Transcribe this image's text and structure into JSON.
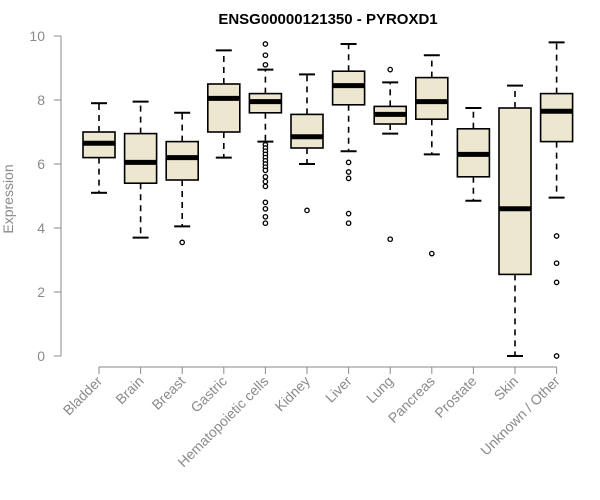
{
  "chart_data": {
    "type": "boxplot",
    "title": "ENSG00000121350 - PYROXD1",
    "xlabel": "",
    "ylabel": "Expression",
    "ylim": [
      0,
      10
    ],
    "yticks": [
      0,
      2,
      4,
      6,
      8,
      10
    ],
    "grid": false,
    "colors": {
      "box_fill": "#ede7d0",
      "stroke": "#000000",
      "axis": "#8a8a8a"
    },
    "categories": [
      "Bladder",
      "Brain",
      "Breast",
      "Gastric",
      "Hematopoietic cells",
      "Kidney",
      "Liver",
      "Lung",
      "Pancreas",
      "Prostate",
      "Skin",
      "Unknown / Other"
    ],
    "boxes": [
      {
        "min": 5.1,
        "q1": 6.2,
        "median": 6.65,
        "q3": 7.0,
        "max": 7.9,
        "outliers": []
      },
      {
        "min": 3.7,
        "q1": 5.4,
        "median": 6.05,
        "q3": 6.95,
        "max": 7.95,
        "outliers": []
      },
      {
        "min": 4.05,
        "q1": 5.5,
        "median": 6.2,
        "q3": 6.7,
        "max": 7.6,
        "outliers": [
          3.55
        ]
      },
      {
        "min": 6.2,
        "q1": 7.0,
        "median": 8.05,
        "q3": 8.5,
        "max": 9.55,
        "outliers": []
      },
      {
        "min": 6.7,
        "q1": 7.6,
        "median": 7.95,
        "q3": 8.2,
        "max": 8.95,
        "outliers": [
          9.75,
          9.4,
          9.1,
          6.6,
          6.5,
          6.4,
          6.3,
          6.2,
          6.1,
          6.0,
          5.9,
          5.8,
          5.6,
          5.45,
          5.3,
          4.8,
          4.6,
          4.35,
          4.15
        ]
      },
      {
        "min": 6.0,
        "q1": 6.5,
        "median": 6.85,
        "q3": 7.55,
        "max": 8.8,
        "outliers": [
          4.55
        ]
      },
      {
        "min": 6.4,
        "q1": 7.85,
        "median": 8.45,
        "q3": 8.9,
        "max": 9.75,
        "outliers": [
          6.05,
          5.75,
          5.55,
          4.45,
          4.15
        ]
      },
      {
        "min": 6.95,
        "q1": 7.25,
        "median": 7.55,
        "q3": 7.8,
        "max": 8.55,
        "outliers": [
          8.95,
          3.65
        ]
      },
      {
        "min": 6.3,
        "q1": 7.4,
        "median": 7.95,
        "q3": 8.7,
        "max": 9.4,
        "outliers": [
          3.2
        ]
      },
      {
        "min": 4.85,
        "q1": 5.6,
        "median": 6.3,
        "q3": 7.1,
        "max": 7.75,
        "outliers": []
      },
      {
        "min": 0.0,
        "q1": 2.55,
        "median": 4.6,
        "q3": 7.75,
        "max": 8.45,
        "outliers": []
      },
      {
        "min": 4.95,
        "q1": 6.7,
        "median": 7.65,
        "q3": 8.2,
        "max": 9.8,
        "outliers": [
          3.75,
          2.9,
          2.3,
          0.0
        ]
      }
    ]
  }
}
